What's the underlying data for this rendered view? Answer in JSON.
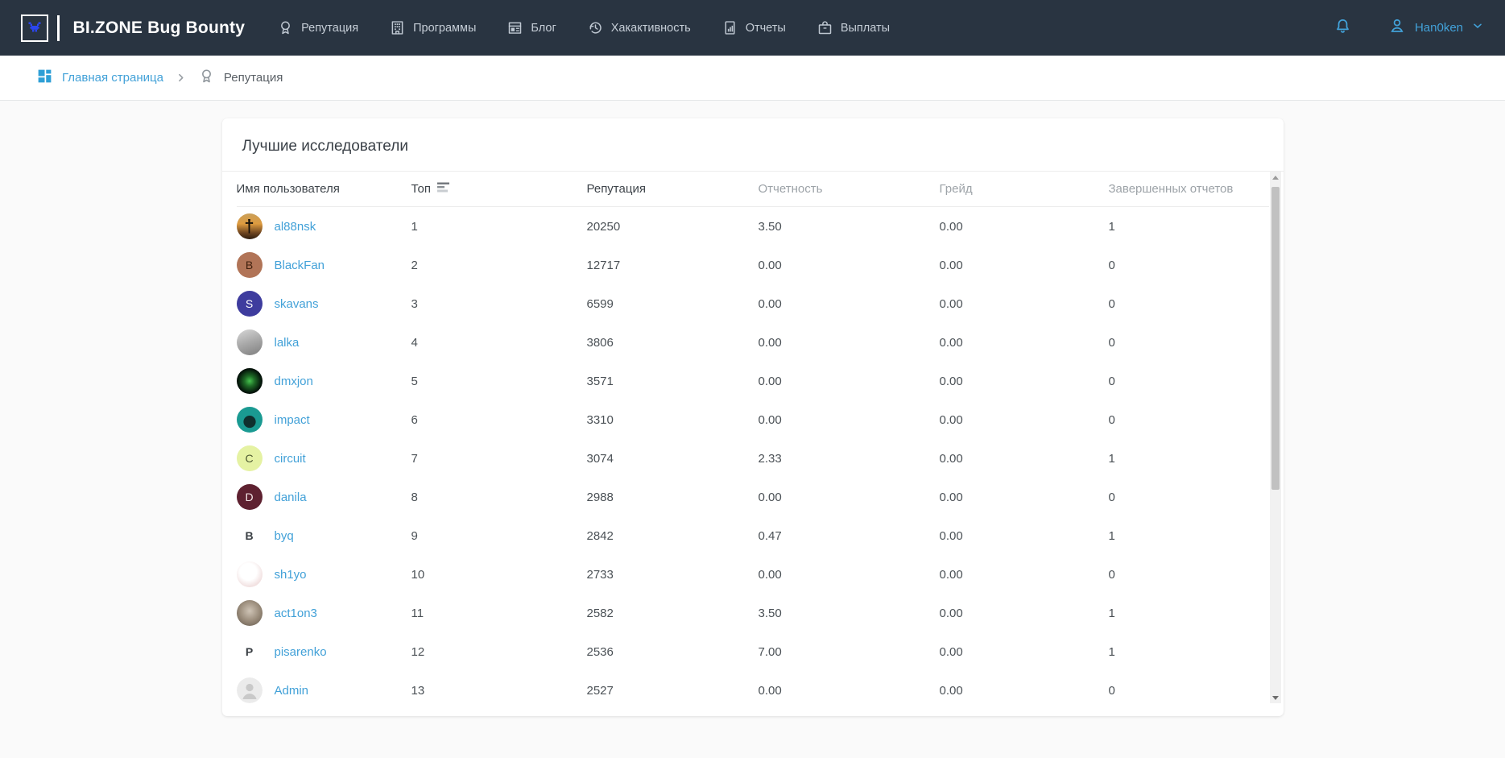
{
  "colors": {
    "navbar_bg": "#293441",
    "link_blue": "#42a1d8",
    "brand_bug_blue": "#2b46f0",
    "breadcrumb_icon_blue": "#2e9fd6",
    "muted_header_gray": "#9da3a8",
    "scrollbar_thumb": "#c1c1c1"
  },
  "navbar": {
    "logo_text": "BI.ZONE Bug Bounty",
    "items": [
      {
        "key": "reputation",
        "label": "Репутация",
        "icon": "medal-icon"
      },
      {
        "key": "programs",
        "label": "Программы",
        "icon": "building-icon"
      },
      {
        "key": "blog",
        "label": "Блог",
        "icon": "newspaper-icon"
      },
      {
        "key": "hackactivity",
        "label": "Хакактивность",
        "icon": "history-clock-icon"
      },
      {
        "key": "reports",
        "label": "Отчеты",
        "icon": "report-chart-icon"
      },
      {
        "key": "payouts",
        "label": "Выплаты",
        "icon": "briefcase-icon"
      }
    ],
    "username": "Han0ken"
  },
  "breadcrumb": {
    "home_label": "Главная страница",
    "current_label": "Репутация"
  },
  "card": {
    "title": "Лучшие исследователи"
  },
  "table": {
    "columns": [
      {
        "key": "username",
        "label": "Имя пользователя",
        "muted": false,
        "sorted": false
      },
      {
        "key": "top",
        "label": "Топ",
        "muted": false,
        "sorted": true
      },
      {
        "key": "reputation",
        "label": "Репутация",
        "muted": false,
        "sorted": false
      },
      {
        "key": "reporting",
        "label": "Отчетность",
        "muted": true,
        "sorted": false
      },
      {
        "key": "grade",
        "label": "Грейд",
        "muted": true,
        "sorted": false
      },
      {
        "key": "completed",
        "label": "Завершенных отчетов",
        "muted": true,
        "sorted": false
      }
    ],
    "rows": [
      {
        "name": "al88nsk",
        "top": "1",
        "reputation": "20250",
        "reporting": "3.50",
        "grade": "0.00",
        "completed": "1",
        "avatar": {
          "kind": "photo",
          "label": "sunset-cross-photo",
          "bg_css": "linear-gradient(180deg,#caa05a 0%,#de9b3f 40%,#6e4520 75%,#2e1d0e 100%)",
          "glyph": "†",
          "glyph_color": "#15100a"
        }
      },
      {
        "name": "BlackFan",
        "top": "2",
        "reputation": "12717",
        "reporting": "0.00",
        "grade": "0.00",
        "completed": "0",
        "avatar": {
          "kind": "letter",
          "bg": "#b17457",
          "fg": "#40210f",
          "text": "B"
        }
      },
      {
        "name": "skavans",
        "top": "3",
        "reputation": "6599",
        "reporting": "0.00",
        "grade": "0.00",
        "completed": "0",
        "avatar": {
          "kind": "letter",
          "bg": "#3e3c9e",
          "fg": "#ffffff",
          "text": "S"
        }
      },
      {
        "name": "lalka",
        "top": "4",
        "reputation": "3806",
        "reporting": "0.00",
        "grade": "0.00",
        "completed": "0",
        "avatar": {
          "kind": "photo",
          "label": "grayscale-photo",
          "bg_css": "linear-gradient(160deg,#d8d8d8 0%,#a8a8a8 50%,#7e7e7e 100%)"
        }
      },
      {
        "name": "dmxjon",
        "top": "5",
        "reputation": "3571",
        "reporting": "0.00",
        "grade": "0.00",
        "completed": "0",
        "avatar": {
          "kind": "photo",
          "label": "green-fractal-photo",
          "bg_css": "radial-gradient(circle,#46c24e 0%,#1e6b26 28%,#04140a 65%,#000000 100%)"
        }
      },
      {
        "name": "impact",
        "top": "6",
        "reputation": "3310",
        "reporting": "0.00",
        "grade": "0.00",
        "completed": "0",
        "avatar": {
          "kind": "photo",
          "label": "teal-portrait-illustration",
          "bg_css": "radial-gradient(circle at 50% 58%, #0f2f2e 30%, #1a9a92 32%)"
        }
      },
      {
        "name": "circuit",
        "top": "7",
        "reputation": "3074",
        "reporting": "2.33",
        "grade": "0.00",
        "completed": "1",
        "avatar": {
          "kind": "letter",
          "bg": "#e5f2a3",
          "fg": "#4e5a33",
          "text": "C"
        }
      },
      {
        "name": "danila",
        "top": "8",
        "reputation": "2988",
        "reporting": "0.00",
        "grade": "0.00",
        "completed": "0",
        "avatar": {
          "kind": "letter",
          "bg": "#5e2130",
          "fg": "#f5e9e9",
          "text": "D"
        }
      },
      {
        "name": "byq",
        "top": "9",
        "reputation": "2842",
        "reporting": "0.47",
        "grade": "0.00",
        "completed": "1",
        "avatar": {
          "kind": "letter",
          "bg": "#ffffff",
          "fg": "#3a3f44",
          "text": "B"
        }
      },
      {
        "name": "sh1yo",
        "top": "10",
        "reputation": "2733",
        "reporting": "0.00",
        "grade": "0.00",
        "completed": "0",
        "avatar": {
          "kind": "photo",
          "label": "light-pink-art-photo",
          "bg_css": "radial-gradient(circle at 45% 40%, #ffffff 40%, #f2e2e2 70%, #eccfcf 100%)"
        }
      },
      {
        "name": "act1on3",
        "top": "11",
        "reputation": "2582",
        "reporting": "3.50",
        "grade": "0.00",
        "completed": "1",
        "avatar": {
          "kind": "photo",
          "label": "cat-photo",
          "bg_css": "radial-gradient(circle at 50% 42%, #cfc4b6 0%, #9b8d7c 50%, #60564a 100%)"
        }
      },
      {
        "name": "pisarenko",
        "top": "12",
        "reputation": "2536",
        "reporting": "7.00",
        "grade": "0.00",
        "completed": "1",
        "avatar": {
          "kind": "letter",
          "bg": "#ffffff",
          "fg": "#3a3f44",
          "text": "P"
        }
      },
      {
        "name": "Admin",
        "top": "13",
        "reputation": "2527",
        "reporting": "0.00",
        "grade": "0.00",
        "completed": "0",
        "avatar": {
          "kind": "placeholder",
          "label": "default-person-avatar"
        }
      }
    ]
  }
}
